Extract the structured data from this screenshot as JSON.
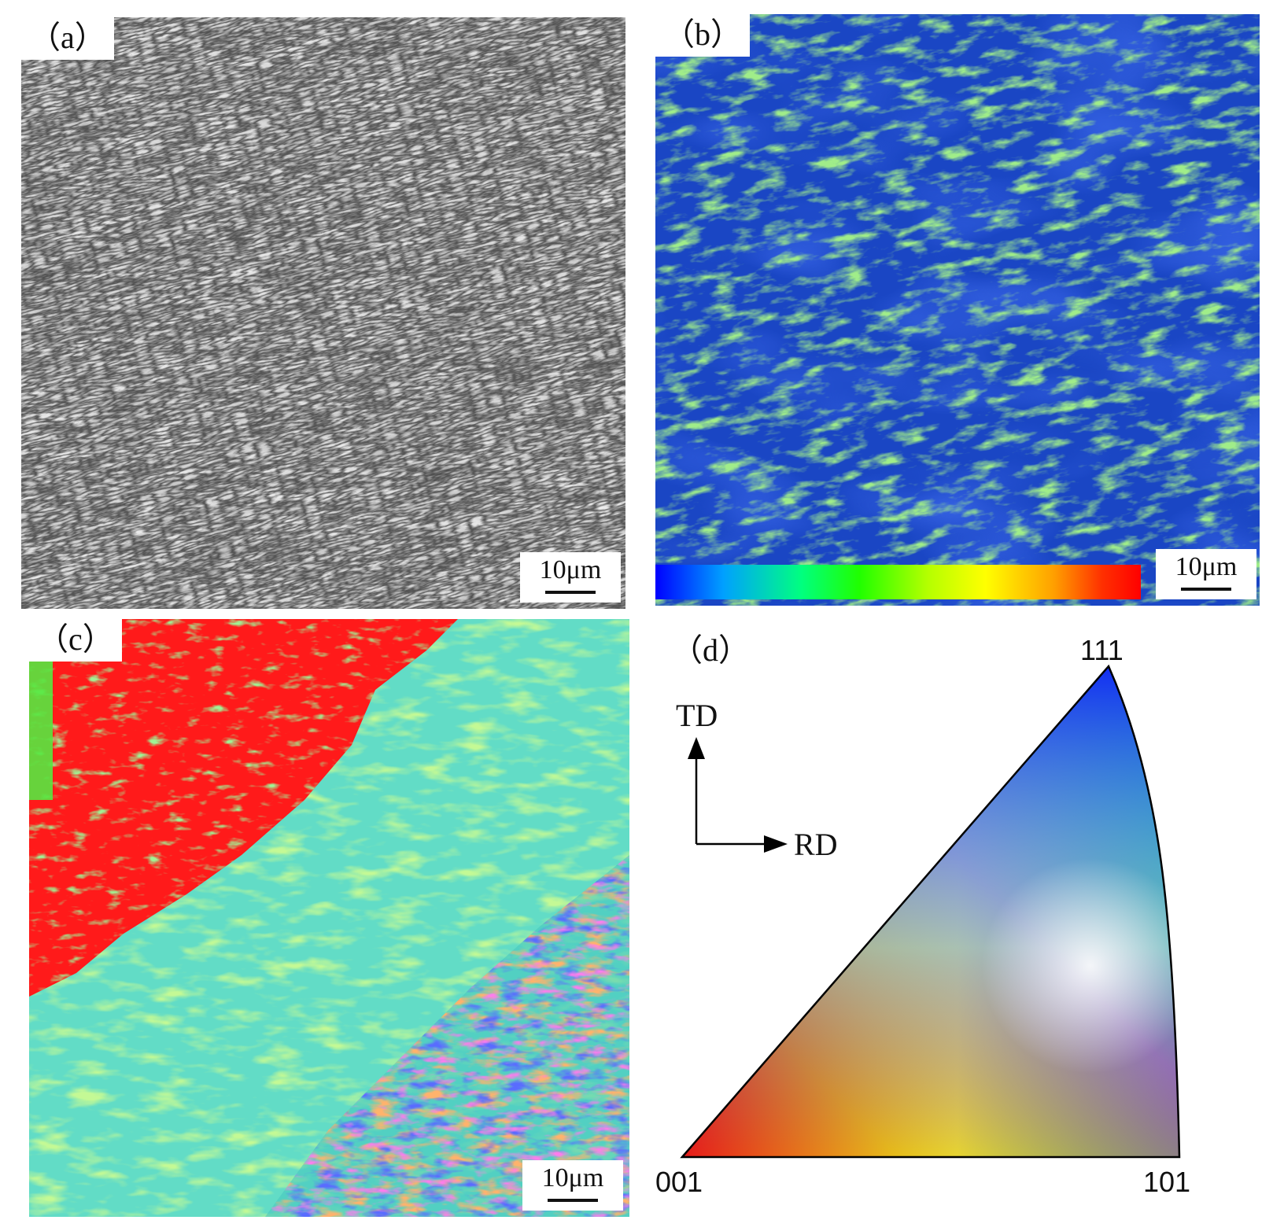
{
  "panels": {
    "a": {
      "label": "（a）",
      "scale_bar": "10μm",
      "colors": {
        "base": "#9a9a9a",
        "light": "#d6d6d6",
        "dark": "#2a2a2a"
      }
    },
    "b": {
      "label": "（b）",
      "scale_bar": "10μm",
      "colors": {
        "base": "#1338b8",
        "highlight": "#4fd34a",
        "yellow": "#c8f040"
      }
    },
    "c": {
      "label": "（c）",
      "scale_bar": "10μm",
      "colors": {
        "red": "#ff1a1a",
        "green": "#5cf040",
        "cyan": "#62dcc6",
        "blue": "#1a2aff",
        "orange": "#ff8a2a",
        "magenta": "#ff3ad0"
      }
    },
    "d": {
      "label": "（d）",
      "directions": {
        "vertical": "TD",
        "horizontal": "RD"
      },
      "corners": {
        "c001": "001",
        "c101": "101",
        "c111": "111"
      },
      "colors": {
        "c001": "#ff0000",
        "c101": "#00ff00",
        "c111": "#0000ff"
      }
    }
  }
}
